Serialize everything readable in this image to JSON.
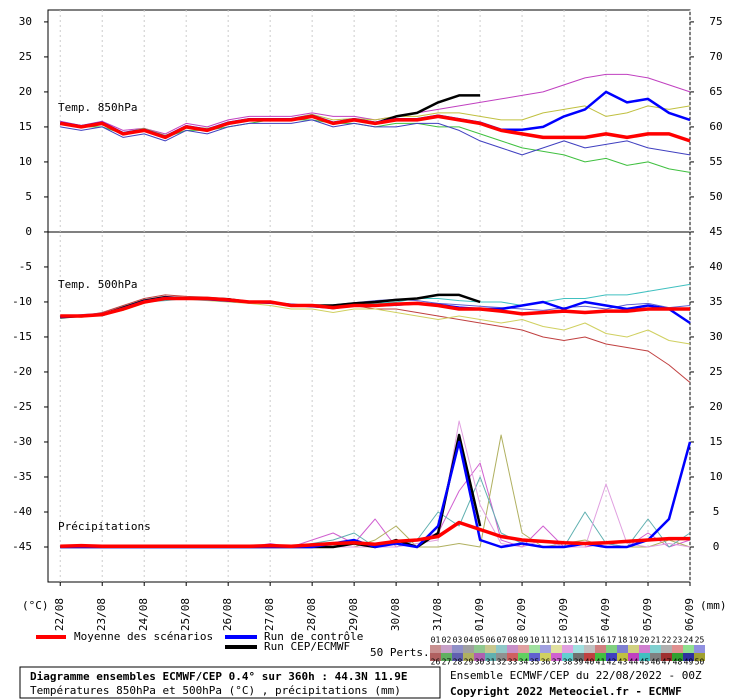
{
  "chart_data": {
    "type": "line",
    "x": [
      0,
      12,
      24,
      36,
      48,
      60,
      72,
      84,
      96,
      108,
      120,
      132,
      144,
      156,
      168,
      180,
      192,
      204,
      216,
      228,
      240,
      252,
      264,
      276,
      288,
      300,
      312,
      324,
      336,
      348,
      360
    ],
    "xlim": [
      -7,
      360
    ],
    "xticks": [
      {
        "value": 0,
        "label": "22/08"
      },
      {
        "value": 24,
        "label": "23/08"
      },
      {
        "value": 48,
        "label": "24/08"
      },
      {
        "value": 72,
        "label": "25/08"
      },
      {
        "value": 96,
        "label": "26/08"
      },
      {
        "value": 120,
        "label": "27/08"
      },
      {
        "value": 144,
        "label": "28/08"
      },
      {
        "value": 168,
        "label": "29/08"
      },
      {
        "value": 192,
        "label": "30/08"
      },
      {
        "value": 216,
        "label": "31/08"
      },
      {
        "value": 240,
        "label": "01/09"
      },
      {
        "value": 264,
        "label": "02/09"
      },
      {
        "value": 288,
        "label": "03/09"
      },
      {
        "value": 312,
        "label": "04/09"
      },
      {
        "value": 336,
        "label": "05/09"
      },
      {
        "value": 360,
        "label": "06/09"
      }
    ],
    "ylim": [
      -50,
      31.7
    ],
    "yticks": [
      -45,
      -40,
      -35,
      -30,
      -25,
      -20,
      -15,
      -10,
      -5,
      0,
      5,
      10,
      15,
      20,
      25,
      30
    ],
    "y2lim": [
      -5,
      76.7
    ],
    "y2ticks": [
      0,
      5,
      10,
      15,
      20,
      25,
      30,
      35,
      40,
      45,
      50,
      55,
      60,
      65,
      70,
      75
    ],
    "ylabel": "(°C)",
    "y2label": "(mm)",
    "grid": "x",
    "legend": {
      "mean": {
        "name": "Moyenne des scénarios",
        "color": "#ff0000"
      },
      "control": {
        "name": "Run de contrôle",
        "color": "#0000ff"
      },
      "cep": {
        "name": "Run CEP/ECMWF",
        "color": "#000000"
      }
    },
    "perturbations_label": "50 Perts.",
    "members": [
      {
        "label": "01",
        "color": "#c89090"
      },
      {
        "label": "02",
        "color": "#c8a0c8"
      },
      {
        "label": "03",
        "color": "#9090c8"
      },
      {
        "label": "04",
        "color": "#a0a0a0"
      },
      {
        "label": "05",
        "color": "#90c890"
      },
      {
        "label": "06",
        "color": "#c8c890"
      },
      {
        "label": "07",
        "color": "#90c8c8"
      },
      {
        "label": "08",
        "color": "#c890c8"
      },
      {
        "label": "09",
        "color": "#e0a0a0"
      },
      {
        "label": "10",
        "color": "#a0e0a0"
      },
      {
        "label": "11",
        "color": "#a0a0e0"
      },
      {
        "label": "12",
        "color": "#e0e0a0"
      },
      {
        "label": "13",
        "color": "#e0a0e0"
      },
      {
        "label": "14",
        "color": "#a0e0e0"
      },
      {
        "label": "15",
        "color": "#c0c0c0"
      },
      {
        "label": "16",
        "color": "#d08080"
      },
      {
        "label": "17",
        "color": "#80d080"
      },
      {
        "label": "18",
        "color": "#8080d0"
      },
      {
        "label": "19",
        "color": "#d0d080"
      },
      {
        "label": "20",
        "color": "#d080d0"
      },
      {
        "label": "21",
        "color": "#80d0d0"
      },
      {
        "label": "22",
        "color": "#b0b0b0"
      },
      {
        "label": "23",
        "color": "#e09090"
      },
      {
        "label": "24",
        "color": "#90e090"
      },
      {
        "label": "25",
        "color": "#9090e0"
      },
      {
        "label": "26",
        "color": "#b06060"
      },
      {
        "label": "27",
        "color": "#60b060"
      },
      {
        "label": "28",
        "color": "#6060b0"
      },
      {
        "label": "29",
        "color": "#b0b060"
      },
      {
        "label": "30",
        "color": "#b060b0"
      },
      {
        "label": "31",
        "color": "#60b0b0"
      },
      {
        "label": "32",
        "color": "#909090"
      },
      {
        "label": "33",
        "color": "#d06060"
      },
      {
        "label": "34",
        "color": "#60d060"
      },
      {
        "label": "35",
        "color": "#6060d0"
      },
      {
        "label": "36",
        "color": "#d0d060"
      },
      {
        "label": "37",
        "color": "#d060d0"
      },
      {
        "label": "38",
        "color": "#60d0d0"
      },
      {
        "label": "39",
        "color": "#707070"
      },
      {
        "label": "40",
        "color": "#c04040"
      },
      {
        "label": "41",
        "color": "#40c040"
      },
      {
        "label": "42",
        "color": "#4040c0"
      },
      {
        "label": "43",
        "color": "#c0c040"
      },
      {
        "label": "44",
        "color": "#c040c0"
      },
      {
        "label": "45",
        "color": "#40c0c0"
      },
      {
        "label": "46",
        "color": "#808080"
      },
      {
        "label": "47",
        "color": "#a03030"
      },
      {
        "label": "48",
        "color": "#30a030"
      },
      {
        "label": "49",
        "color": "#3030a0"
      },
      {
        "label": "50",
        "color": "#a0a030"
      }
    ],
    "panels": [
      {
        "label": "Temp. 850hPa",
        "perturbations": [
          {
            "color": "#40c040",
            "values": [
              15.5,
              15,
              15,
              14,
              14.5,
              13.5,
              14.5,
              14.5,
              15,
              15.5,
              16,
              16,
              16,
              15.5,
              15.5,
              15,
              15.5,
              15.5,
              15,
              15,
              14,
              13,
              12,
              11.5,
              11,
              10,
              10.5,
              9.5,
              10,
              9,
              8.5
            ]
          },
          {
            "color": "#c040c0",
            "values": [
              15.8,
              15.2,
              15.8,
              14.5,
              14.8,
              14,
              15.5,
              15,
              16,
              16.5,
              16.5,
              16.5,
              17,
              16.5,
              16.5,
              16,
              16.5,
              17,
              17.5,
              18,
              18.5,
              19,
              19.5,
              20,
              21,
              22,
              22.5,
              22.5,
              22,
              21,
              20
            ]
          },
          {
            "color": "#4040c0",
            "values": [
              15,
              14.5,
              15,
              13.5,
              14,
              13,
              14.5,
              14,
              15,
              15.5,
              15.5,
              15.5,
              16,
              15,
              15.5,
              15,
              15,
              15.5,
              15.5,
              14.5,
              13,
              12,
              11,
              12,
              13,
              12,
              12.5,
              13,
              12,
              11.5,
              11
            ]
          },
          {
            "color": "#c0c040",
            "values": [
              15.5,
              15,
              15.5,
              14.2,
              14.8,
              13.8,
              15,
              14.8,
              15.5,
              16,
              16.2,
              16.2,
              16.8,
              16,
              16.2,
              16,
              16.5,
              16.5,
              17,
              17,
              16.5,
              16,
              16,
              17,
              17.5,
              18,
              16.5,
              17,
              18,
              17.5,
              18
            ]
          }
        ],
        "mean": [
          15.5,
          15,
          15.5,
          14,
          14.5,
          13.5,
          15,
          14.5,
          15.5,
          16,
          16,
          16,
          16.5,
          15.5,
          16,
          15.5,
          16,
          16,
          16.5,
          16,
          15.5,
          14.5,
          14,
          13.5,
          13.5,
          13.5,
          14,
          13.5,
          14,
          14,
          13
        ],
        "control": [
          15.6,
          15.1,
          15.6,
          14.1,
          14.6,
          13.6,
          15.1,
          14.6,
          15.6,
          16.1,
          16.1,
          16.1,
          16.6,
          15.6,
          16.1,
          15.6,
          16.1,
          16.1,
          16.6,
          16.1,
          15.6,
          14.6,
          14.6,
          15,
          16.5,
          17.5,
          20,
          18.5,
          19,
          17,
          16
        ],
        "cep": [
          15.5,
          15,
          15.5,
          14,
          14.5,
          13.5,
          15,
          14.5,
          15.5,
          16,
          16,
          16,
          16.5,
          15.5,
          16,
          15.5,
          16.5,
          17,
          18.5,
          19.5,
          19.5,
          null,
          null,
          null,
          null,
          null,
          null,
          null,
          null,
          null,
          null
        ]
      },
      {
        "label": "Temp. 500hPa",
        "perturbations": [
          {
            "color": "#c04040",
            "values": [
              -12,
              -12,
              -11.5,
              -10.5,
              -9.5,
              -9,
              -9.2,
              -9.3,
              -9.5,
              -10,
              -10,
              -10.5,
              -10.5,
              -11,
              -10.5,
              -11,
              -11,
              -11.5,
              -12,
              -12.5,
              -13,
              -13.5,
              -14,
              -15,
              -15.5,
              -15,
              -16,
              -16.5,
              -17,
              -19,
              -21.5
            ]
          },
          {
            "color": "#40c0c0",
            "values": [
              -12.3,
              -12,
              -12,
              -11,
              -10,
              -9.8,
              -9.5,
              -9.5,
              -9.8,
              -10.2,
              -10,
              -10.5,
              -10.5,
              -10.8,
              -10.5,
              -10.2,
              -10,
              -9.5,
              -9.5,
              -9.8,
              -10,
              -10,
              -10.5,
              -10,
              -9.5,
              -9.5,
              -9,
              -9,
              -8.5,
              -8,
              -7.5
            ]
          },
          {
            "color": "#d0d060",
            "values": [
              -12,
              -12.2,
              -11.8,
              -11.2,
              -10.2,
              -9.5,
              -9.6,
              -9.8,
              -10,
              -10.2,
              -10.5,
              -11,
              -11,
              -11.5,
              -11,
              -11,
              -11.5,
              -12,
              -12.5,
              -12,
              -12.5,
              -13,
              -12.5,
              -13.5,
              -14,
              -13,
              -14.5,
              -15,
              -14,
              -15.5,
              -16
            ]
          },
          {
            "color": "#6060d0",
            "values": [
              -12.1,
              -11.8,
              -11.6,
              -10.8,
              -9.8,
              -9.3,
              -9.4,
              -9.6,
              -9.9,
              -10,
              -10.2,
              -10.3,
              -10.6,
              -10.4,
              -10.1,
              -9.8,
              -9.6,
              -9.8,
              -10.2,
              -10.4,
              -10.6,
              -10.8,
              -11,
              -11.2,
              -10.8,
              -10.6,
              -11,
              -10.4,
              -10.2,
              -10.8,
              -10.5
            ]
          }
        ],
        "mean": [
          -12,
          -12,
          -11.8,
          -11,
          -10,
          -9.5,
          -9.5,
          -9.5,
          -9.7,
          -10,
          -10,
          -10.5,
          -10.5,
          -10.8,
          -10.5,
          -10.5,
          -10.3,
          -10.2,
          -10.5,
          -11,
          -11,
          -11.3,
          -11.7,
          -11.5,
          -11.3,
          -11.5,
          -11.3,
          -11.3,
          -11,
          -11,
          -11
        ],
        "control": [
          -12.1,
          -12,
          -11.8,
          -10.9,
          -9.9,
          -9.4,
          -9.5,
          -9.6,
          -9.8,
          -10,
          -10.1,
          -10.4,
          -10.6,
          -10.8,
          -10.5,
          -10.5,
          -10.4,
          -10.2,
          -10.4,
          -10.8,
          -11,
          -11,
          -10.5,
          -10,
          -11,
          -10,
          -10.5,
          -11,
          -10.5,
          -11,
          -13
        ],
        "cep": [
          -12.2,
          -12,
          -11.8,
          -10.8,
          -9.8,
          -9.3,
          -9.5,
          -9.5,
          -9.6,
          -10,
          -10,
          -10.5,
          -10.5,
          -10.5,
          -10.2,
          -10,
          -9.7,
          -9.5,
          -9,
          -9,
          -10,
          null,
          null,
          null,
          null,
          null,
          null,
          null,
          null,
          null,
          null
        ]
      },
      {
        "label": "Précipitations",
        "axis": "y2",
        "perturbations": [
          {
            "color": "#d060d0",
            "values": [
              0,
              0,
              0,
              0,
              0,
              0,
              0,
              0,
              0,
              0,
              0.5,
              0,
              1,
              2,
              0.5,
              4,
              0,
              1,
              2,
              8,
              12,
              1,
              0,
              3,
              0,
              0,
              0.5,
              0,
              2,
              0,
              1
            ]
          },
          {
            "color": "#b0b060",
            "values": [
              0,
              0.2,
              0,
              0,
              0,
              0,
              0,
              0,
              0,
              0,
              0,
              0,
              0,
              0,
              0,
              1,
              3,
              0,
              0,
              0.5,
              0,
              16,
              2,
              0,
              0.5,
              1,
              0,
              0,
              0,
              1,
              0
            ]
          },
          {
            "color": "#60b0b0",
            "values": [
              0,
              0,
              0,
              0,
              0,
              0,
              0,
              0,
              0,
              0,
              0,
              0,
              0.5,
              1,
              2,
              0,
              0,
              1,
              5,
              3,
              10,
              2,
              0.5,
              0,
              0,
              5,
              0.5,
              0,
              4,
              0,
              2
            ]
          },
          {
            "color": "#e0a0e0",
            "values": [
              0,
              0,
              0,
              0,
              0,
              0,
              0,
              0,
              0,
              0,
              0,
              0,
              0,
              0,
              0,
              0,
              0,
              0.5,
              1,
              18,
              6,
              0.5,
              0,
              1,
              0,
              0,
              9,
              0.5,
              0,
              0.5,
              0
            ]
          }
        ],
        "mean": [
          0.1,
          0.2,
          0.1,
          0.1,
          0.1,
          0.1,
          0.1,
          0.1,
          0.1,
          0.1,
          0.2,
          0.1,
          0.3,
          0.5,
          0.6,
          0.4,
          0.8,
          1,
          1.5,
          3.5,
          2.5,
          1.5,
          1,
          0.8,
          0.6,
          0.5,
          0.6,
          0.8,
          1,
          1.2,
          1.2
        ],
        "control": [
          0,
          0,
          0,
          0,
          0,
          0,
          0,
          0,
          0,
          0,
          0,
          0,
          0,
          0.5,
          1,
          0,
          0.5,
          0,
          3,
          15,
          1,
          0,
          0.5,
          0,
          0,
          0.5,
          0,
          0,
          1,
          4,
          15
        ],
        "cep": [
          0,
          0,
          0,
          0,
          0,
          0,
          0,
          0,
          0,
          0,
          0,
          0,
          0,
          0,
          0.5,
          0,
          1,
          0,
          2,
          16,
          3,
          null,
          null,
          null,
          null,
          null,
          null,
          null,
          null,
          null,
          null
        ]
      }
    ],
    "footer": {
      "title": "Diagramme ensembles ECMWF/CEP 0.4° sur 360h : 44.3N 11.9E",
      "subtitle": "Températures 850hPa et 500hPa (°C) , précipitations (mm)",
      "ensemble": "Ensemble ECMWF/CEP du 22/08/2022 - 00Z",
      "copyright": "Copyright 2022 Meteociel.fr - ECMWF"
    }
  }
}
